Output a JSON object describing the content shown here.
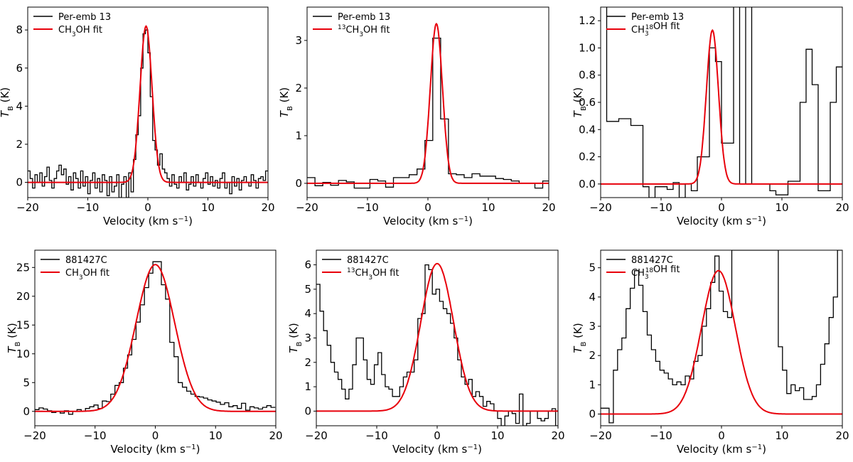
{
  "figure": {
    "xlabel": "Velocity (km s",
    "xlabel_sup": "−1",
    "xlabel_end": ")",
    "ylabel_main": "T",
    "ylabel_sub": "B",
    "ylabel_unit": " (K)"
  },
  "colors": {
    "observed": "#000000",
    "fit": "#e8000b"
  },
  "chart_data": [
    {
      "type": "line",
      "panel": "top-left",
      "legend": {
        "observed": "Per-emb 13",
        "fit_prefix": "",
        "fit_iso": "",
        "fit_iso_pos": "",
        "fit_body": "CH",
        "fit_sub": "3",
        "fit_suffix": "OH fit"
      },
      "xlim": [
        -20,
        20
      ],
      "ylim": [
        -0.8,
        9.2
      ],
      "xticks": [
        -20,
        -10,
        0,
        10,
        20
      ],
      "yticks": [
        0,
        2,
        4,
        6,
        8
      ],
      "yticklabels": [
        "0",
        "2",
        "4",
        "6",
        "8"
      ],
      "fit": {
        "amp": 8.2,
        "center": -0.3,
        "sigma": 1.0
      },
      "observed_step": {
        "x": [
          -20,
          -19.6,
          -19.2,
          -18.8,
          -18.4,
          -18,
          -17.6,
          -17.2,
          -16.8,
          -16.4,
          -16,
          -15.6,
          -15.2,
          -14.8,
          -14.4,
          -14,
          -13.6,
          -13.2,
          -12.8,
          -12.4,
          -12,
          -11.6,
          -11.2,
          -10.8,
          -10.4,
          -10,
          -9.6,
          -9.2,
          -8.8,
          -8.4,
          -8,
          -7.6,
          -7.2,
          -6.8,
          -6.4,
          -6,
          -5.6,
          -5.2,
          -4.8,
          -4.4,
          -4,
          -3.6,
          -3.2,
          -2.8,
          -2.4,
          -2,
          -1.6,
          -1.2,
          -0.8,
          -0.4,
          0,
          0.4,
          0.8,
          1.2,
          1.6,
          2,
          2.4,
          2.8,
          3.2,
          3.6,
          4,
          4.4,
          4.8,
          5.2,
          5.6,
          6,
          6.4,
          6.8,
          7.2,
          7.6,
          8,
          8.4,
          8.8,
          9.2,
          9.6,
          10,
          10.4,
          10.8,
          11.2,
          11.6,
          12,
          12.4,
          12.8,
          13.2,
          13.6,
          14,
          14.4,
          14.8,
          15.2,
          15.6,
          16,
          16.4,
          16.8,
          17.2,
          17.6,
          18,
          18.4,
          18.8,
          19.2,
          19.6
        ],
        "y": [
          0.6,
          0.2,
          -0.3,
          0.4,
          0,
          0.5,
          -0.2,
          0.3,
          0.8,
          0.1,
          -0.3,
          0.2,
          0.6,
          0.9,
          0.4,
          0.7,
          -0.1,
          0.3,
          -0.4,
          0.5,
          0.2,
          -0.3,
          0.6,
          -0.2,
          0.3,
          -0.6,
          0.1,
          0.5,
          -0.3,
          0.2,
          -0.5,
          0.4,
          0.1,
          -0.7,
          0.3,
          -0.5,
          -0.2,
          0.4,
          -0.8,
          -0.1,
          0.3,
          -0.8,
          0.5,
          -0.5,
          1.2,
          2.5,
          3.5,
          6.0,
          7.8,
          8.0,
          6.8,
          4.5,
          2.2,
          1.7,
          0.9,
          1.5,
          0.7,
          0.5,
          0.2,
          -0.2,
          0.4,
          -0.1,
          -0.3,
          0.3,
          0,
          0.5,
          -0.4,
          -0.1,
          0.3,
          -0.2,
          0.4,
          0,
          -0.3,
          0.2,
          0.5,
          -0.1,
          0.3,
          -0.2,
          0.1,
          -0.3,
          0.2,
          0.5,
          -0.3,
          0,
          -0.6,
          0.3,
          -0.2,
          0.2,
          -0.4,
          0.1,
          0.3,
          0,
          -0.2,
          0.4,
          0.1,
          -0.3,
          0.2,
          0.3,
          0.1,
          0.6
        ]
      }
    },
    {
      "type": "line",
      "panel": "top-middle",
      "legend": {
        "observed": "Per-emb 13",
        "fit_prefix": "",
        "fit_iso": "13",
        "fit_iso_pos": "pre",
        "fit_body": "CH",
        "fit_sub": "3",
        "fit_suffix": "OH fit"
      },
      "xlim": [
        -20,
        20
      ],
      "ylim": [
        -0.3,
        3.7
      ],
      "xticks": [
        -20,
        -10,
        0,
        10,
        20
      ],
      "yticks": [
        0,
        1,
        2,
        3
      ],
      "yticklabels": [
        "0",
        "1",
        "2",
        "3"
      ],
      "fit": {
        "amp": 3.35,
        "center": 1.4,
        "sigma": 1.0
      },
      "observed_step": {
        "x": [
          -20,
          -18.7,
          -17.4,
          -16.1,
          -14.8,
          -13.5,
          -12.2,
          -10.9,
          -9.6,
          -8.3,
          -7,
          -5.7,
          -4.4,
          -3.1,
          -1.8,
          -0.5,
          0.8,
          2.1,
          3.4,
          4.7,
          6,
          7.3,
          8.6,
          9.9,
          11.2,
          12.5,
          13.8,
          15.1,
          16.4,
          17.7,
          19
        ],
        "y": [
          0.12,
          -0.05,
          0.02,
          -0.04,
          0.06,
          0.03,
          -0.1,
          -0.1,
          0.08,
          0.05,
          -0.08,
          0.12,
          0.12,
          0.18,
          0.3,
          0.9,
          3.05,
          1.35,
          0.2,
          0.18,
          0.12,
          0.2,
          0.15,
          0.15,
          0.1,
          0.08,
          0.05,
          0.0,
          0.0,
          -0.1,
          0.05
        ]
      }
    },
    {
      "type": "line",
      "panel": "top-right",
      "legend": {
        "observed": "Per-emb 13",
        "fit_prefix": "",
        "fit_iso": "18",
        "fit_iso_pos": "post",
        "fit_body": "CH",
        "fit_sub": "3",
        "fit_suffix": "OH fit"
      },
      "xlim": [
        -20,
        20
      ],
      "ylim": [
        -0.1,
        1.3
      ],
      "xticks": [
        -20,
        -10,
        0,
        10,
        20
      ],
      "yticks": [
        0,
        0.2,
        0.4,
        0.6,
        0.8,
        1.0,
        1.2
      ],
      "yticklabels": [
        "0.0",
        "0.2",
        "0.4",
        "0.6",
        "0.8",
        "1.0",
        "1.2"
      ],
      "fit": {
        "amp": 1.13,
        "center": -1.5,
        "sigma": 1.0
      },
      "observed_step": {
        "x": [
          -20,
          -19,
          -18,
          -17,
          -16,
          -15,
          -14,
          -13,
          -12,
          -11,
          -10,
          -9,
          -8,
          -7,
          -6,
          -5,
          -4,
          -3,
          -2,
          -1,
          0,
          1,
          2,
          3,
          4,
          5,
          6,
          7,
          8,
          9,
          10,
          11,
          12,
          13,
          14,
          15,
          16,
          17,
          18,
          19
        ],
        "y": [
          1.4,
          0.46,
          0.46,
          0.48,
          0.48,
          0.43,
          0.43,
          -0.02,
          -0.1,
          -0.02,
          -0.02,
          -0.04,
          0.01,
          -0.1,
          0.0,
          -0.05,
          0.2,
          0.2,
          1.0,
          0.9,
          0.3,
          0.3,
          1.4,
          0.0,
          1.4,
          0.0,
          0.0,
          0.0,
          -0.05,
          -0.08,
          -0.08,
          0.02,
          0.02,
          0.6,
          0.99,
          0.73,
          -0.05,
          -0.05,
          0.6,
          0.86
        ]
      }
    },
    {
      "type": "line",
      "panel": "bottom-left",
      "legend": {
        "observed": "881427C",
        "fit_prefix": "",
        "fit_iso": "",
        "fit_iso_pos": "",
        "fit_body": "CH",
        "fit_sub": "3",
        "fit_suffix": "OH fit"
      },
      "xlim": [
        -20,
        20
      ],
      "ylim": [
        -2.5,
        28
      ],
      "xticks": [
        -20,
        -10,
        0,
        10,
        20
      ],
      "yticks": [
        0,
        5,
        10,
        15,
        20,
        25
      ],
      "yticklabels": [
        "0",
        "5",
        "10",
        "15",
        "20",
        "25"
      ],
      "fit": {
        "amp": 25.5,
        "center": 0.0,
        "sigma": 3.2
      },
      "observed_step": {
        "x": [
          -20,
          -19.3,
          -18.6,
          -17.9,
          -17.2,
          -16.5,
          -15.8,
          -15.1,
          -14.4,
          -13.7,
          -13,
          -12.3,
          -11.6,
          -10.9,
          -10.2,
          -9.5,
          -8.8,
          -8.1,
          -7.4,
          -6.7,
          -6,
          -5.3,
          -4.6,
          -3.9,
          -3.2,
          -2.5,
          -1.8,
          -1.1,
          -0.4,
          0.3,
          1,
          1.7,
          2.4,
          3.1,
          3.8,
          4.5,
          5.2,
          5.9,
          6.6,
          7.3,
          8,
          8.7,
          9.4,
          10.1,
          10.8,
          11.5,
          12.2,
          12.9,
          13.6,
          14.3,
          15,
          15.7,
          16.4,
          17.1,
          17.8,
          18.5,
          19.2
        ],
        "y": [
          0.3,
          0.6,
          0.4,
          0.1,
          -0.2,
          0.0,
          -0.3,
          0.1,
          -0.5,
          0.0,
          0.3,
          0.0,
          0.5,
          0.8,
          1.1,
          0.5,
          1.8,
          1.7,
          3.0,
          4.5,
          5.0,
          7.5,
          9.8,
          12.5,
          15.5,
          18.5,
          21.5,
          24.0,
          26.0,
          26.0,
          22.0,
          19.5,
          12.0,
          9.5,
          5.0,
          4.2,
          3.5,
          3.0,
          2.6,
          2.5,
          2.3,
          2.0,
          1.8,
          1.6,
          1.2,
          1.5,
          0.8,
          1.0,
          0.5,
          1.4,
          0.2,
          0.8,
          0.6,
          0.4,
          0.7,
          1.0,
          0.7
        ]
      }
    },
    {
      "type": "line",
      "panel": "bottom-middle",
      "legend": {
        "observed": "881427C",
        "fit_prefix": "",
        "fit_iso": "13",
        "fit_iso_pos": "pre",
        "fit_body": "CH",
        "fit_sub": "3",
        "fit_suffix": "OH fit"
      },
      "xlim": [
        -20,
        20
      ],
      "ylim": [
        -0.6,
        6.6
      ],
      "xticks": [
        -20,
        -10,
        0,
        10,
        20
      ],
      "yticks": [
        0,
        1,
        2,
        3,
        4,
        5,
        6
      ],
      "yticklabels": [
        "0",
        "1",
        "2",
        "3",
        "4",
        "5",
        "6"
      ],
      "fit": {
        "amp": 6.05,
        "center": 0.0,
        "sigma": 2.7
      },
      "observed_step": {
        "x": [
          -20,
          -19.4,
          -18.8,
          -18.2,
          -17.6,
          -17,
          -16.4,
          -15.8,
          -15.2,
          -14.6,
          -14,
          -13.4,
          -12.8,
          -12.2,
          -11.6,
          -11,
          -10.4,
          -9.8,
          -9.2,
          -8.6,
          -8,
          -7.4,
          -6.8,
          -6.2,
          -5.6,
          -5,
          -4.4,
          -3.8,
          -3.2,
          -2.6,
          -2,
          -1.4,
          -0.8,
          -0.2,
          0.4,
          1,
          1.6,
          2.2,
          2.8,
          3.4,
          4,
          4.6,
          5.2,
          5.8,
          6.4,
          7,
          7.6,
          8.2,
          8.8,
          9.4,
          10,
          10.6,
          11.2,
          11.8,
          12.4,
          13,
          13.6,
          14.2,
          14.8,
          15.4,
          16,
          16.6,
          17.2,
          17.8,
          18.4,
          19,
          19.6
        ],
        "y": [
          5.2,
          4.1,
          3.3,
          2.7,
          2.0,
          1.6,
          1.3,
          0.9,
          0.5,
          0.9,
          1.9,
          3.0,
          3.0,
          2.1,
          1.3,
          1.1,
          1.9,
          2.4,
          1.5,
          1.0,
          0.9,
          0.6,
          0.6,
          1.0,
          1.4,
          1.6,
          1.6,
          2.1,
          3.8,
          4.0,
          6.0,
          5.8,
          4.8,
          5.0,
          4.5,
          4.2,
          4.0,
          3.6,
          3.0,
          2.1,
          1.4,
          1.1,
          1.3,
          0.6,
          0.8,
          0.6,
          0.2,
          0.4,
          0.3,
          0.0,
          -0.3,
          -0.6,
          -0.2,
          0.0,
          -0.1,
          -0.5,
          0.7,
          -0.6,
          -0.5,
          0.0,
          0.0,
          -0.3,
          -0.4,
          -0.3,
          0.0,
          0.1,
          -0.6
        ]
      }
    },
    {
      "type": "line",
      "panel": "bottom-right",
      "legend": {
        "observed": "881427C",
        "fit_prefix": "",
        "fit_iso": "18",
        "fit_iso_pos": "post",
        "fit_body": "CH",
        "fit_sub": "3",
        "fit_suffix": "OH fit"
      },
      "xlim": [
        -20,
        20
      ],
      "ylim": [
        -0.4,
        5.6
      ],
      "xticks": [
        -20,
        -10,
        0,
        10,
        20
      ],
      "yticks": [
        0,
        1,
        2,
        3,
        4,
        5
      ],
      "yticklabels": [
        "0",
        "1",
        "2",
        "3",
        "4",
        "5"
      ],
      "fit": {
        "amp": 4.9,
        "center": -0.5,
        "sigma": 2.8
      },
      "observed_step": {
        "x": [
          -20,
          -19.3,
          -18.6,
          -17.9,
          -17.2,
          -16.5,
          -15.8,
          -15.1,
          -14.4,
          -13.7,
          -13,
          -12.3,
          -11.6,
          -10.9,
          -10.2,
          -9.5,
          -8.8,
          -8.1,
          -7.4,
          -6.7,
          -6,
          -5.3,
          -4.6,
          -3.9,
          -3.2,
          -2.5,
          -1.8,
          -1.1,
          -0.4,
          0.3,
          1,
          1.7,
          2.4,
          3.1,
          3.8,
          4.5,
          5.2,
          5.9,
          6.6,
          7.3,
          8,
          8.7,
          9.4,
          10.1,
          10.8,
          11.5,
          12.2,
          12.9,
          13.6,
          14.3,
          15,
          15.7,
          16.4,
          17.1,
          17.8,
          18.5,
          19.2
        ],
        "y": [
          0.2,
          0.2,
          -0.3,
          1.5,
          2.2,
          2.6,
          3.6,
          4.3,
          4.9,
          4.4,
          3.5,
          2.7,
          2.2,
          1.8,
          1.5,
          1.4,
          1.2,
          1.0,
          1.1,
          1.0,
          1.3,
          1.2,
          1.8,
          2.0,
          3.0,
          3.6,
          4.5,
          5.4,
          4.2,
          3.5,
          3.3,
          5.6,
          5.6,
          5.6,
          5.6,
          5.6,
          5.6,
          5.6,
          5.6,
          5.6,
          5.6,
          5.6,
          2.3,
          1.5,
          0.7,
          1.0,
          0.8,
          0.9,
          0.5,
          0.5,
          0.6,
          1.0,
          1.7,
          2.4,
          3.3,
          4.0,
          5.6
        ]
      }
    }
  ]
}
